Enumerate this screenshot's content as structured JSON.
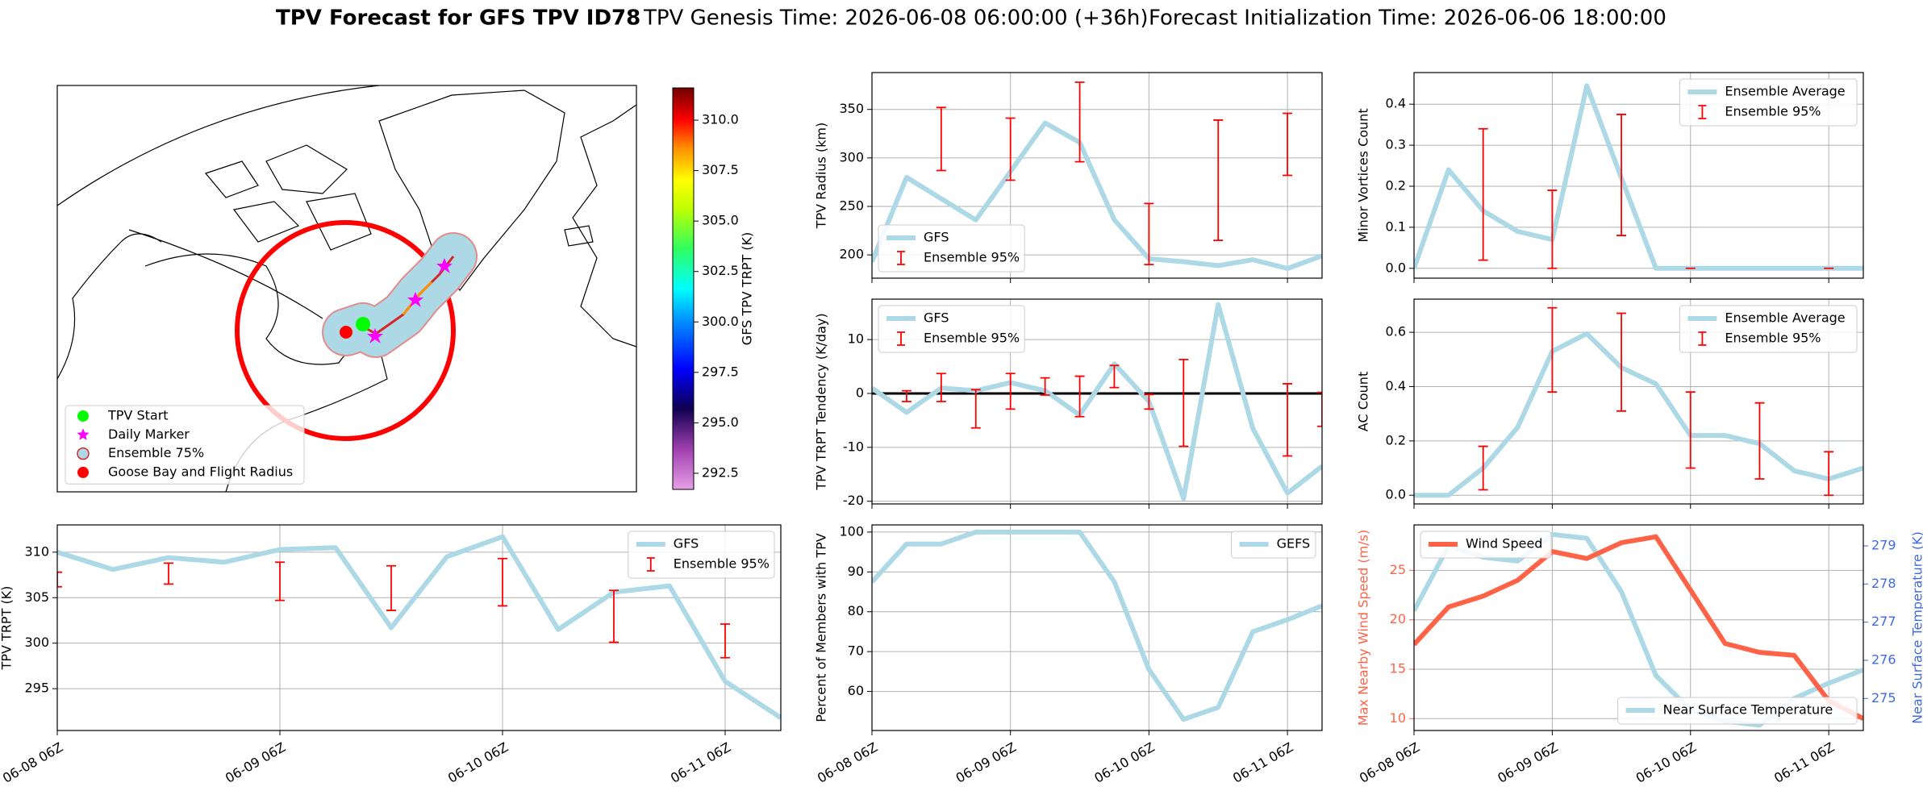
{
  "figure_title": {
    "main": "TPV Forecast for GFS TPV ID78",
    "genesis": "TPV Genesis Time: 2026-06-08 06:00:00 (+36h)",
    "init": "Forecast Initialization Time: 2026-06-06 18:00:00"
  },
  "chart_data": [
    {
      "type": "map",
      "colorbar": {
        "label": "GFS TPV TRPT (K)",
        "lim": [
          291.7,
          311.6
        ],
        "ticks": [
          292.5,
          {
            "value": 295,
            "label": "295.0"
          },
          297.5,
          {
            "value": 300,
            "label": "300.0"
          },
          302.5,
          {
            "value": 305,
            "label": "305.0"
          },
          307.5,
          {
            "value": 310,
            "label": "310.0"
          }
        ]
      },
      "legend": [
        {
          "name": "TPV Start",
          "color": "#00ff00",
          "marker": "circle"
        },
        {
          "name": "Daily Marker",
          "color": "#ff00ff",
          "marker": "star"
        },
        {
          "name": "Ensemble 75%",
          "color": "#add8e6",
          "edgecolor": "#d62728",
          "marker": "circle"
        },
        {
          "name": "Goose Bay and Flight Radius",
          "color": "#ff0000",
          "marker": "circle"
        }
      ]
    },
    {
      "type": "line",
      "ylabel": "TPV Radius (km)",
      "categories": [
        "06-08 06Z",
        null,
        null,
        null,
        "06-09 06Z",
        null,
        null,
        null,
        "06-10 06Z",
        null,
        null,
        null,
        "06-11 06Z",
        null
      ],
      "ylim": [
        176,
        388
      ],
      "yticks": [
        200,
        250,
        300,
        350
      ],
      "grid": true,
      "legend": "lower left",
      "xticklabels": false,
      "series": [
        {
          "name": "GFS",
          "color": "#add8e6",
          "style": "line",
          "values": [
            193,
            280,
            258,
            236,
            286,
            336,
            316,
            236,
            196,
            193,
            189,
            195,
            186,
            199
          ]
        },
        {
          "name": "Ensemble 95%",
          "color": "#ff0000",
          "style": "errorbar",
          "low": [
            null,
            null,
            287,
            null,
            277,
            null,
            296,
            null,
            190,
            null,
            215,
            null,
            282,
            null
          ],
          "high": [
            null,
            null,
            352,
            null,
            341,
            null,
            378,
            null,
            253,
            null,
            339,
            null,
            346,
            null
          ]
        }
      ]
    },
    {
      "type": "line",
      "ylabel": "Minor Vortices Count",
      "categories": [
        "06-08 06Z",
        null,
        null,
        null,
        "06-09 06Z",
        null,
        null,
        null,
        "06-10 06Z",
        null,
        null,
        null,
        "06-11 06Z",
        null
      ],
      "ylim": [
        -0.024,
        0.477
      ],
      "yticks": [
        {
          "value": 0,
          "label": "0.0"
        },
        0.1,
        0.2,
        0.3,
        0.4
      ],
      "grid": true,
      "legend": "upper right",
      "xticklabels": false,
      "series": [
        {
          "name": "Ensemble Average",
          "color": "#add8e6",
          "style": "line",
          "values": [
            0,
            0.24,
            0.14,
            0.09,
            0.07,
            0.445,
            0.22,
            0,
            0,
            0,
            0,
            0,
            0,
            0
          ]
        },
        {
          "name": "Ensemble 95%",
          "color": "#ff0000",
          "style": "errorbar",
          "low": [
            null,
            null,
            0.02,
            null,
            0,
            null,
            0.08,
            null,
            0,
            null,
            null,
            null,
            0,
            null
          ],
          "high": [
            null,
            null,
            0.34,
            null,
            0.19,
            null,
            0.375,
            null,
            0,
            null,
            null,
            null,
            0,
            null
          ]
        }
      ]
    },
    {
      "type": "line",
      "ylabel": "TPV TRPT Tendency (K/day)",
      "categories": [
        "06-08 06Z",
        null,
        null,
        null,
        "06-09 06Z",
        null,
        null,
        null,
        "06-10 06Z",
        null,
        null,
        null,
        "06-11 06Z",
        null
      ],
      "ylim": [
        -20.5,
        17.5
      ],
      "yticks": [
        -20,
        -10,
        0,
        10
      ],
      "grid": true,
      "hline": 0,
      "legend": "upper left",
      "xticklabels": false,
      "series": [
        {
          "name": "GFS",
          "color": "#add8e6",
          "style": "line",
          "values": [
            1,
            -3.5,
            1,
            0.5,
            2,
            0.5,
            -4,
            5.5,
            -1.5,
            -19.5,
            16.5,
            -6.5,
            -18.5,
            -13.5
          ]
        },
        {
          "name": "Ensemble 95%",
          "color": "#ff0000",
          "style": "errorbar",
          "low": [
            null,
            -1.5,
            -1.5,
            -6.4,
            -2.9,
            -0.3,
            -4.3,
            1.1,
            -2.9,
            -9.8,
            null,
            null,
            -11.6,
            -6.1
          ],
          "high": [
            null,
            0.5,
            3.7,
            0.7,
            3.7,
            2.9,
            3.2,
            5.2,
            -0.2,
            6.3,
            null,
            null,
            1.8,
            0.2
          ]
        }
      ]
    },
    {
      "type": "line",
      "ylabel": "AC Count",
      "categories": [
        "06-08 06Z",
        null,
        null,
        null,
        "06-09 06Z",
        null,
        null,
        null,
        "06-10 06Z",
        null,
        null,
        null,
        "06-11 06Z",
        null
      ],
      "ylim": [
        -0.032,
        0.722
      ],
      "yticks": [
        {
          "value": 0,
          "label": "0.0"
        },
        0.2,
        0.4,
        0.6
      ],
      "grid": true,
      "legend": "upper right",
      "xticklabels": false,
      "series": [
        {
          "name": "Ensemble Average",
          "color": "#add8e6",
          "style": "line",
          "values": [
            0,
            0,
            0.1,
            0.25,
            0.53,
            0.595,
            0.47,
            0.41,
            0.22,
            0.22,
            0.19,
            0.09,
            0.06,
            0.1
          ]
        },
        {
          "name": "Ensemble 95%",
          "color": "#ff0000",
          "style": "errorbar",
          "low": [
            null,
            null,
            0.02,
            null,
            0.38,
            null,
            0.31,
            null,
            0.1,
            null,
            0.06,
            null,
            0,
            null
          ],
          "high": [
            null,
            null,
            0.18,
            null,
            0.69,
            null,
            0.67,
            null,
            0.38,
            null,
            0.34,
            null,
            0.16,
            null
          ]
        }
      ]
    },
    {
      "type": "line",
      "ylabel": "TPV TRPT (K)",
      "categories": [
        "06-08 06Z",
        null,
        null,
        null,
        "06-09 06Z",
        null,
        null,
        null,
        "06-10 06Z",
        null,
        null,
        null,
        "06-11 06Z",
        null
      ],
      "ylim": [
        290.4,
        313
      ],
      "yticks": [
        295,
        300,
        305,
        310
      ],
      "grid": true,
      "legend": "upper right",
      "xticklabels": true,
      "series": [
        {
          "name": "GFS",
          "color": "#add8e6",
          "style": "line",
          "values": [
            310.0,
            308.1,
            309.4,
            308.9,
            310.3,
            310.5,
            301.7,
            309.5,
            311.7,
            301.5,
            305.6,
            306.3,
            295.8,
            291.8
          ]
        },
        {
          "name": "Ensemble 95%",
          "color": "#ff0000",
          "style": "errorbar",
          "low": [
            306.2,
            null,
            306.5,
            null,
            304.7,
            null,
            303.6,
            null,
            304.1,
            null,
            300.1,
            null,
            298.4,
            null
          ],
          "high": [
            307.8,
            null,
            308.8,
            null,
            308.9,
            null,
            308.5,
            null,
            309.3,
            null,
            305.8,
            null,
            302.1,
            null
          ]
        }
      ]
    },
    {
      "type": "line",
      "ylabel": "Percent of Members with TPV",
      "categories": [
        "06-08 06Z",
        null,
        null,
        null,
        "06-09 06Z",
        null,
        null,
        null,
        "06-10 06Z",
        null,
        null,
        null,
        "06-11 06Z",
        null
      ],
      "ylim": [
        50.2,
        101.8
      ],
      "yticks": [
        60,
        70,
        80,
        90,
        100
      ],
      "grid": true,
      "legend": "upper right",
      "xticklabels": true,
      "series": [
        {
          "name": "GEFS",
          "color": "#add8e6",
          "style": "line",
          "values": [
            87.5,
            97,
            97,
            100,
            100,
            100,
            100,
            87.5,
            65.5,
            53,
            56,
            75,
            78,
            81.5
          ]
        }
      ]
    },
    {
      "type": "line",
      "ylabel": "Max Nearby Wind Speed (m/s)",
      "y2label": "Near Surface Temperature (K)",
      "ycolor": "#ff6347",
      "y2color": "#4169e1",
      "categories": [
        "06-08 06Z",
        null,
        null,
        null,
        "06-09 06Z",
        null,
        null,
        null,
        "06-10 06Z",
        null,
        null,
        null,
        "06-11 06Z",
        null
      ],
      "ylim": [
        8.8,
        29.6
      ],
      "yticks": [
        10,
        15,
        20,
        25
      ],
      "y2lim": [
        274.16,
        279.55
      ],
      "y2ticks": [
        275,
        276,
        277,
        278,
        279
      ],
      "grid": true,
      "legend": "upper left",
      "legend2": "lower right",
      "xticklabels": true,
      "series": [
        {
          "name": "Near Surface Temperature",
          "color": "#add8e6",
          "style": "line",
          "axis": "y2",
          "values": [
            277.3,
            279.0,
            278.7,
            278.6,
            279.3,
            279.2,
            277.8,
            275.6,
            274.7,
            274.4,
            274.3,
            275.0,
            275.4,
            275.75
          ]
        },
        {
          "name": "Wind Speed",
          "color": "#ff6347",
          "style": "line",
          "values": [
            17.5,
            21.3,
            22.4,
            24.0,
            26.9,
            26.2,
            27.8,
            28.4,
            23.0,
            17.6,
            16.7,
            16.4,
            11.8,
            10.0
          ]
        }
      ]
    }
  ]
}
